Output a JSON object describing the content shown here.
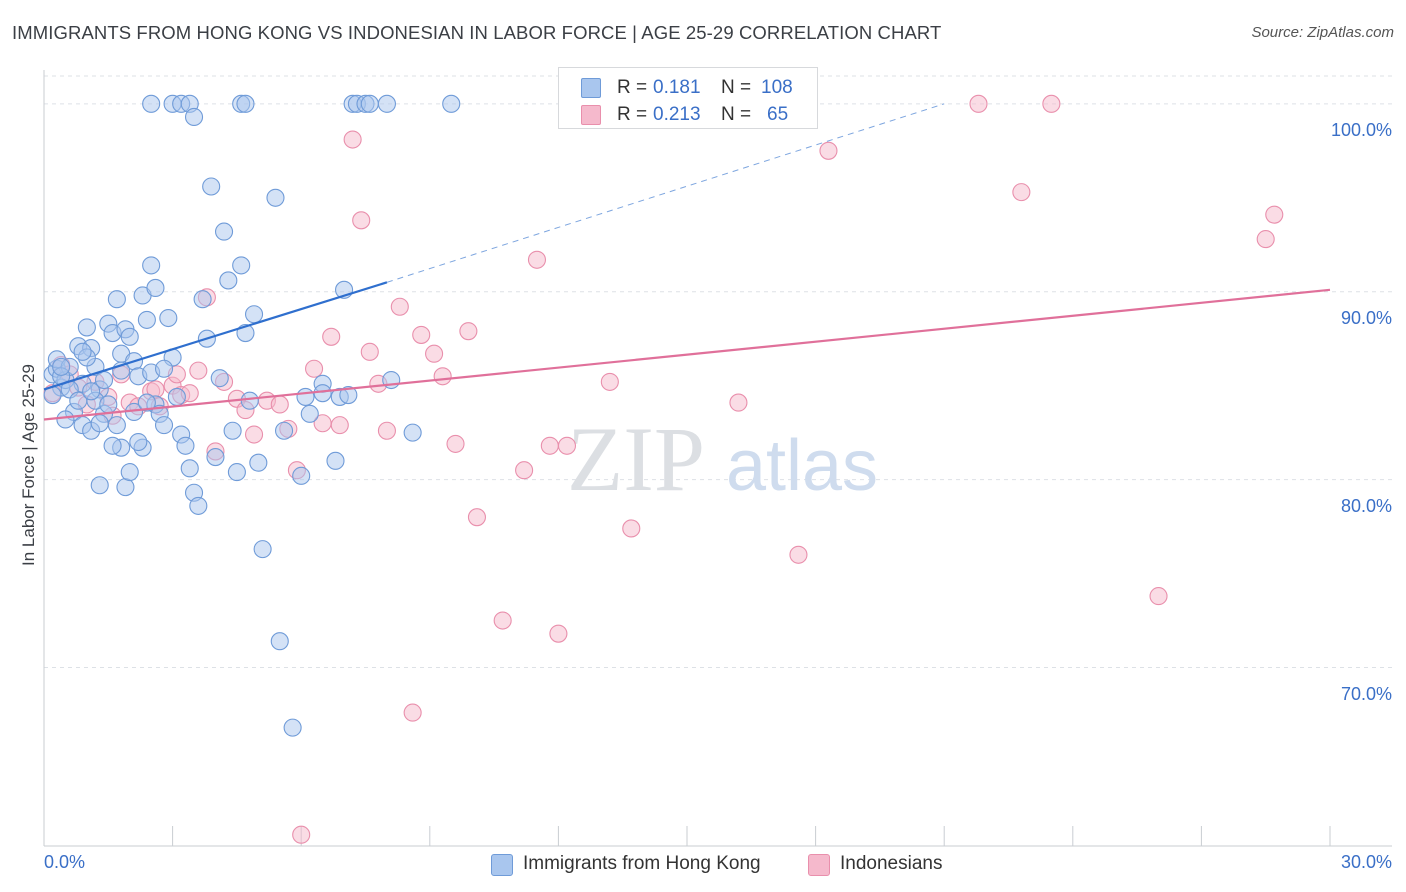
{
  "title": "IMMIGRANTS FROM HONG KONG VS INDONESIAN IN LABOR FORCE | AGE 25-29 CORRELATION CHART",
  "source": "Source: ZipAtlas.com",
  "watermark": {
    "zip": "ZIP",
    "atlas": "atlas"
  },
  "colors": {
    "blue_fill": "#a9c6ee",
    "blue_stroke": "#6f9bd8",
    "blue_line": "#2f6fce",
    "pink_fill": "#f5b9cc",
    "pink_stroke": "#e98fac",
    "pink_line": "#e0709a",
    "axis_text": "#3a6fc7",
    "grid": "#dde1e6"
  },
  "legend": {
    "rows": [
      {
        "r_label": "R =",
        "r_value": "0.181",
        "n_label": "N =",
        "n_value": "108"
      },
      {
        "r_label": "R =",
        "r_value": "0.213",
        "n_label": "N =",
        "n_value": "65"
      }
    ]
  },
  "bottom_legend": [
    "Immigrants from Hong Kong",
    "Indonesians"
  ],
  "chart_data": {
    "type": "scatter",
    "title": "IMMIGRANTS FROM HONG KONG VS INDONESIAN IN LABOR FORCE | AGE 25-29 CORRELATION CHART",
    "ylabel": "In Labor Force | Age 25-29",
    "xlabel": "",
    "xlim": [
      0,
      30
    ],
    "ylim": [
      60.5,
      101.8
    ],
    "x_tick_labels": [
      {
        "value": 0,
        "label": "0.0%"
      },
      {
        "value": 30,
        "label": "30.0%"
      }
    ],
    "x_minor_ticks": [
      0,
      3,
      6,
      9,
      12,
      15,
      18,
      21,
      24,
      27,
      30
    ],
    "y_ticks": [
      {
        "value": 100,
        "label": "100.0%"
      },
      {
        "value": 90,
        "label": "90.0%"
      },
      {
        "value": 80,
        "label": "80.0%"
      },
      {
        "value": 70,
        "label": "70.0%"
      }
    ],
    "grid": true,
    "legend_position": "top-center",
    "series": [
      {
        "name": "Immigrants from Hong Kong",
        "r": 0.181,
        "n": 108,
        "trend": {
          "x": [
            0,
            8
          ],
          "y": [
            84.8,
            90.5
          ]
        },
        "trend_extension": {
          "x": [
            8,
            21
          ],
          "y": [
            90.5,
            100
          ]
        },
        "points": [
          [
            0.2,
            85.6
          ],
          [
            0.3,
            85.9
          ],
          [
            0.4,
            84.9
          ],
          [
            0.5,
            85.3
          ],
          [
            0.3,
            86.4
          ],
          [
            0.6,
            86.0
          ],
          [
            0.2,
            84.5
          ],
          [
            0.4,
            85.5
          ],
          [
            0.8,
            87.1
          ],
          [
            0.9,
            85.1
          ],
          [
            1.0,
            88.1
          ],
          [
            1.1,
            87.0
          ],
          [
            1.2,
            86.0
          ],
          [
            1.3,
            84.8
          ],
          [
            1.4,
            83.5
          ],
          [
            1.5,
            88.3
          ],
          [
            1.6,
            87.8
          ],
          [
            1.7,
            89.6
          ],
          [
            1.8,
            86.7
          ],
          [
            1.9,
            88.0
          ],
          [
            2.0,
            87.6
          ],
          [
            2.1,
            86.3
          ],
          [
            2.2,
            85.5
          ],
          [
            2.3,
            89.8
          ],
          [
            2.4,
            88.5
          ],
          [
            2.5,
            85.7
          ],
          [
            2.6,
            84.0
          ],
          [
            2.7,
            83.5
          ],
          [
            2.8,
            82.9
          ],
          [
            0.7,
            83.6
          ],
          [
            0.9,
            82.9
          ],
          [
            1.1,
            82.6
          ],
          [
            1.2,
            84.2
          ],
          [
            1.3,
            83.0
          ],
          [
            1.5,
            84.0
          ],
          [
            1.7,
            82.9
          ],
          [
            1.8,
            81.7
          ],
          [
            1.9,
            79.6
          ],
          [
            2.0,
            80.4
          ],
          [
            2.1,
            83.6
          ],
          [
            2.3,
            81.7
          ],
          [
            2.4,
            84.1
          ],
          [
            2.5,
            91.4
          ],
          [
            2.6,
            90.2
          ],
          [
            2.9,
            88.6
          ],
          [
            3.0,
            86.5
          ],
          [
            3.1,
            84.4
          ],
          [
            3.2,
            82.4
          ],
          [
            3.3,
            81.8
          ],
          [
            3.4,
            80.6
          ],
          [
            3.5,
            79.3
          ],
          [
            3.6,
            78.6
          ],
          [
            3.7,
            89.6
          ],
          [
            3.8,
            87.5
          ],
          [
            3.9,
            95.6
          ],
          [
            4.0,
            81.2
          ],
          [
            4.1,
            85.4
          ],
          [
            4.2,
            93.2
          ],
          [
            4.3,
            90.6
          ],
          [
            4.4,
            82.6
          ],
          [
            4.5,
            80.4
          ],
          [
            4.6,
            91.4
          ],
          [
            4.7,
            87.8
          ],
          [
            4.8,
            84.2
          ],
          [
            4.9,
            88.8
          ],
          [
            5.0,
            80.9
          ],
          [
            5.1,
            76.3
          ],
          [
            5.4,
            95.0
          ],
          [
            5.5,
            71.4
          ],
          [
            5.6,
            82.6
          ],
          [
            5.8,
            66.8
          ],
          [
            6.0,
            80.2
          ],
          [
            6.1,
            84.4
          ],
          [
            6.2,
            83.5
          ],
          [
            6.5,
            85.1
          ],
          [
            6.8,
            81.0
          ],
          [
            6.9,
            84.4
          ],
          [
            7.0,
            90.1
          ],
          [
            7.2,
            100.0
          ],
          [
            7.3,
            100.0
          ],
          [
            7.5,
            100.0
          ],
          [
            7.6,
            100.0
          ],
          [
            8.0,
            100.0
          ],
          [
            3.0,
            100.0
          ],
          [
            3.2,
            100.0
          ],
          [
            3.4,
            100.0
          ],
          [
            3.5,
            99.3
          ],
          [
            4.6,
            100.0
          ],
          [
            4.7,
            100.0
          ],
          [
            2.5,
            100.0
          ],
          [
            1.0,
            86.5
          ],
          [
            0.6,
            84.8
          ],
          [
            0.5,
            83.2
          ],
          [
            1.4,
            85.3
          ],
          [
            2.8,
            85.9
          ],
          [
            0.8,
            84.2
          ],
          [
            7.1,
            84.5
          ],
          [
            8.1,
            85.3
          ],
          [
            8.6,
            82.5
          ],
          [
            6.5,
            84.6
          ],
          [
            9.5,
            100.0
          ],
          [
            1.6,
            81.8
          ],
          [
            1.3,
            79.7
          ],
          [
            2.2,
            82.0
          ],
          [
            1.8,
            85.8
          ],
          [
            0.4,
            86.0
          ],
          [
            0.9,
            86.8
          ],
          [
            1.1,
            84.7
          ]
        ]
      },
      {
        "name": "Indonesians",
        "r": 0.213,
        "n": 65,
        "trend": {
          "x": [
            0,
            30
          ],
          "y": [
            83.2,
            90.1
          ]
        },
        "points": [
          [
            0.2,
            84.6
          ],
          [
            0.4,
            86.1
          ],
          [
            0.6,
            85.6
          ],
          [
            0.8,
            84.9
          ],
          [
            1.0,
            84.0
          ],
          [
            1.2,
            85.2
          ],
          [
            1.5,
            84.4
          ],
          [
            1.8,
            85.6
          ],
          [
            2.0,
            84.1
          ],
          [
            2.2,
            83.9
          ],
          [
            2.5,
            84.7
          ],
          [
            2.7,
            83.9
          ],
          [
            3.0,
            85.0
          ],
          [
            3.2,
            84.5
          ],
          [
            3.4,
            84.6
          ],
          [
            3.6,
            85.8
          ],
          [
            3.8,
            89.7
          ],
          [
            4.0,
            81.5
          ],
          [
            4.2,
            85.2
          ],
          [
            4.5,
            84.3
          ],
          [
            4.7,
            83.7
          ],
          [
            4.9,
            82.4
          ],
          [
            5.2,
            84.2
          ],
          [
            5.5,
            84.0
          ],
          [
            5.7,
            82.7
          ],
          [
            5.9,
            80.5
          ],
          [
            6.0,
            61.1
          ],
          [
            6.3,
            85.9
          ],
          [
            6.5,
            83.0
          ],
          [
            6.7,
            87.6
          ],
          [
            6.9,
            82.9
          ],
          [
            7.2,
            98.1
          ],
          [
            7.4,
            93.8
          ],
          [
            7.6,
            86.8
          ],
          [
            7.8,
            85.1
          ],
          [
            8.0,
            82.6
          ],
          [
            8.3,
            89.2
          ],
          [
            8.6,
            67.6
          ],
          [
            8.8,
            87.7
          ],
          [
            9.1,
            86.7
          ],
          [
            9.3,
            85.5
          ],
          [
            9.6,
            81.9
          ],
          [
            9.9,
            87.9
          ],
          [
            10.1,
            78.0
          ],
          [
            10.7,
            72.5
          ],
          [
            11.2,
            80.5
          ],
          [
            11.5,
            91.7
          ],
          [
            11.8,
            81.8
          ],
          [
            12.0,
            71.8
          ],
          [
            12.2,
            81.8
          ],
          [
            13.2,
            85.2
          ],
          [
            13.7,
            77.4
          ],
          [
            14.0,
            100.0
          ],
          [
            16.2,
            84.1
          ],
          [
            17.6,
            76.0
          ],
          [
            18.3,
            97.5
          ],
          [
            21.8,
            100.0
          ],
          [
            22.8,
            95.3
          ],
          [
            23.5,
            100.0
          ],
          [
            26.0,
            73.8
          ],
          [
            28.5,
            92.8
          ],
          [
            28.7,
            94.1
          ],
          [
            2.6,
            84.8
          ],
          [
            1.6,
            83.4
          ],
          [
            3.1,
            85.6
          ]
        ]
      }
    ]
  }
}
